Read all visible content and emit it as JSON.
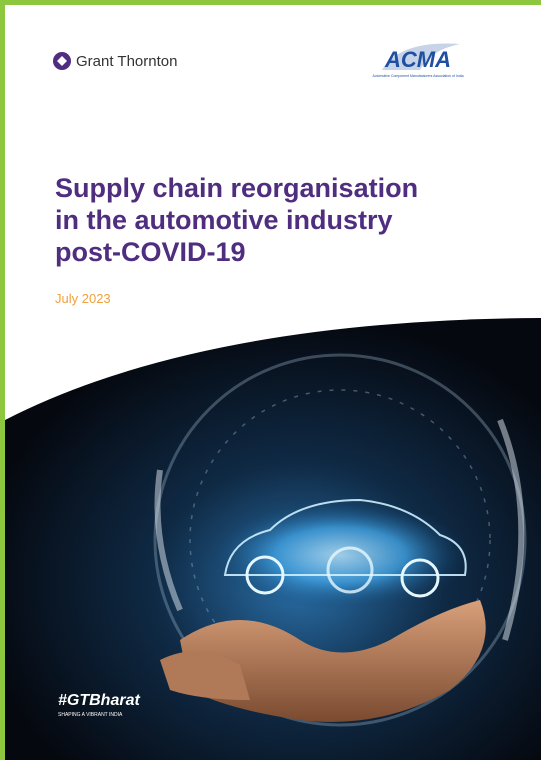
{
  "header": {
    "left_logo": "Grant Thornton",
    "right_logo": "ACMA",
    "right_logo_tagline": "Automotive Component Manufacturers Association of India"
  },
  "title": [
    "Supply chain reorganisation",
    "in the automotive industry",
    "post-COVID-19"
  ],
  "date": "July 2023",
  "footer": {
    "hashtag": "#GTBharat",
    "tagline": "SHAPING A VIBRANT INDIA"
  }
}
